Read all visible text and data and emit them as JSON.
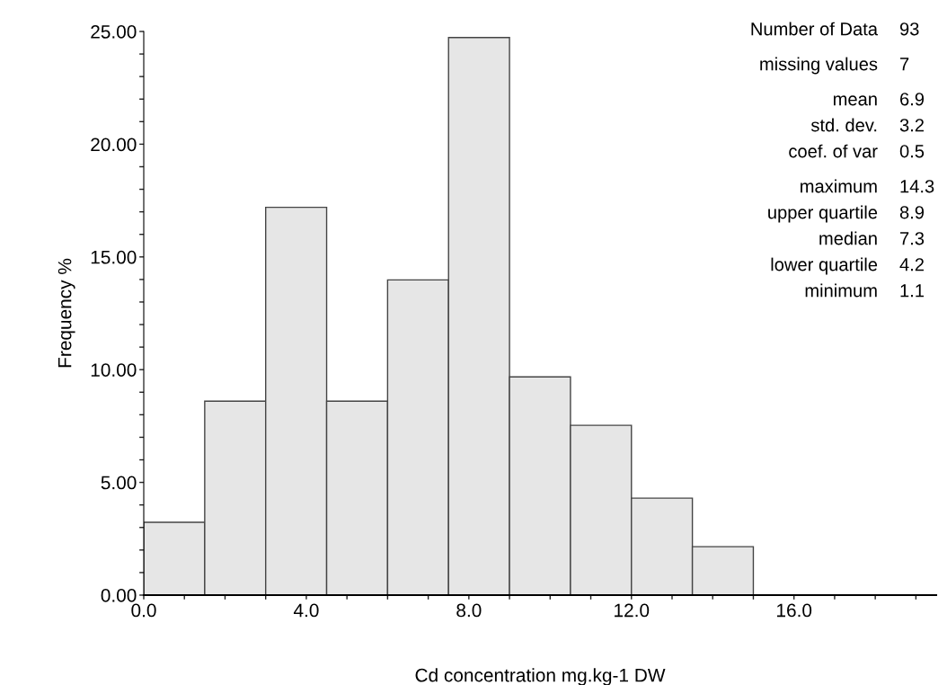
{
  "chart_data": {
    "type": "histogram",
    "xlabel": "Cd concentration mg.kg-1 DW",
    "ylabel": "Frequency %",
    "bins": [
      0,
      1.5,
      3,
      4.5,
      6,
      7.5,
      9,
      10.5,
      12,
      13.5,
      15
    ],
    "values": [
      3.23,
      8.6,
      17.2,
      8.6,
      13.98,
      24.73,
      9.68,
      7.53,
      4.3,
      2.15
    ],
    "color": "#e6e6e6",
    "xlim": [
      0,
      19.5
    ],
    "ylim": [
      0,
      25
    ],
    "xticks": [
      {
        "value": 0,
        "label": "0.0"
      },
      {
        "value": 1,
        "label": null
      },
      {
        "value": 2,
        "label": null
      },
      {
        "value": 3,
        "label": null
      },
      {
        "value": 4,
        "label": "4.0"
      },
      {
        "value": 5,
        "label": null
      },
      {
        "value": 6,
        "label": null
      },
      {
        "value": 7,
        "label": null
      },
      {
        "value": 8,
        "label": "8.0"
      },
      {
        "value": 9,
        "label": null
      },
      {
        "value": 10,
        "label": null
      },
      {
        "value": 11,
        "label": null
      },
      {
        "value": 12,
        "label": "12.0"
      },
      {
        "value": 13,
        "label": null
      },
      {
        "value": 14,
        "label": null
      },
      {
        "value": 15,
        "label": null
      },
      {
        "value": 16,
        "label": "16.0"
      },
      {
        "value": 17,
        "label": null
      },
      {
        "value": 18,
        "label": null
      },
      {
        "value": 19,
        "label": null
      }
    ],
    "yticks": [
      {
        "value": 0,
        "label": "0.00"
      },
      {
        "value": 1,
        "label": null
      },
      {
        "value": 2,
        "label": null
      },
      {
        "value": 3,
        "label": null
      },
      {
        "value": 4,
        "label": null
      },
      {
        "value": 5,
        "label": "5.00"
      },
      {
        "value": 6,
        "label": null
      },
      {
        "value": 7,
        "label": null
      },
      {
        "value": 8,
        "label": null
      },
      {
        "value": 9,
        "label": null
      },
      {
        "value": 10,
        "label": "10.00"
      },
      {
        "value": 11,
        "label": null
      },
      {
        "value": 12,
        "label": null
      },
      {
        "value": 13,
        "label": null
      },
      {
        "value": 14,
        "label": null
      },
      {
        "value": 15,
        "label": "15.00"
      },
      {
        "value": 16,
        "label": null
      },
      {
        "value": 17,
        "label": null
      },
      {
        "value": 18,
        "label": null
      },
      {
        "value": 19,
        "label": null
      },
      {
        "value": 20,
        "label": "20.00"
      },
      {
        "value": 21,
        "label": null
      },
      {
        "value": 22,
        "label": null
      },
      {
        "value": 23,
        "label": null
      },
      {
        "value": 24,
        "label": null
      },
      {
        "value": 25,
        "label": "25.00"
      }
    ],
    "grid": false,
    "legend": false,
    "annotations": [
      "Number of Data",
      "93",
      "missing values",
      "7",
      "mean",
      "6.9",
      "std. dev.",
      "3.2",
      "coef. of var",
      "0.5",
      "maximum",
      "14.3",
      "upper quartile",
      "8.9",
      "median",
      "7.3",
      "lower quartile",
      "4.2",
      "minimum",
      "1.1"
    ]
  }
}
